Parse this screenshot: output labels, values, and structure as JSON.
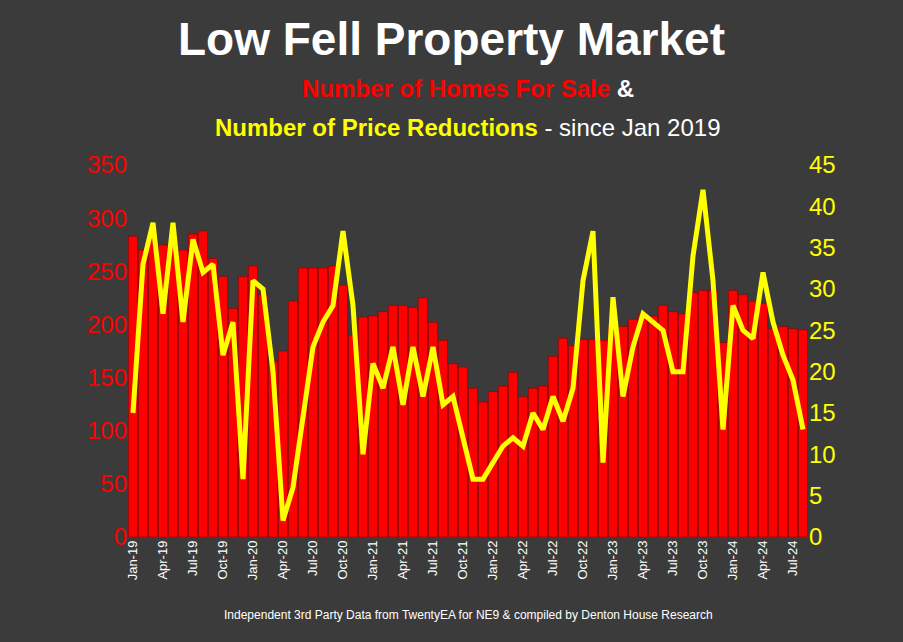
{
  "chart_data": {
    "type": "bar",
    "title": "Low Fell Property Market",
    "subtitle": {
      "joiner": "&",
      "suffix": "- since Jan 2019"
    },
    "annotation": "Independent 3rd Party Data from TwentyEA for NE9 & compiled by Denton House Research",
    "categories": [
      "Jan-19",
      null,
      null,
      "Apr-19",
      null,
      null,
      "Jul-19",
      null,
      null,
      "Oct-19",
      null,
      null,
      "Jan-20",
      null,
      null,
      "Apr-20",
      null,
      null,
      "Jul-20",
      null,
      null,
      "Oct-20",
      null,
      null,
      "Jan-21",
      null,
      null,
      "Apr-21",
      null,
      null,
      "Jul-21",
      null,
      null,
      "Oct-21",
      null,
      null,
      "Jan-22",
      null,
      null,
      "Apr-22",
      null,
      null,
      "Jul-22",
      null,
      null,
      "Oct-22",
      null,
      null,
      "Jan-23",
      null,
      null,
      "Apr-23",
      null,
      null,
      "Jul-23",
      null,
      null,
      "Oct-23",
      null,
      null,
      "Jan-24",
      null,
      null,
      "Apr-24",
      null,
      null,
      "Jul-24",
      null
    ],
    "series": [
      {
        "name": "Number of Homes For Sale",
        "type": "bar",
        "color": "#ff0000",
        "values": [
          283,
          270,
          285,
          275,
          275,
          270,
          285,
          288,
          262,
          245,
          215,
          245,
          255,
          228,
          165,
          175,
          222,
          253,
          253,
          253,
          255,
          237,
          190,
          207,
          208,
          212,
          218,
          218,
          216,
          225,
          202,
          185,
          163,
          160,
          140,
          127,
          137,
          142,
          155,
          132,
          140,
          142,
          170,
          187,
          180,
          186,
          186,
          185,
          198,
          198,
          205,
          210,
          208,
          218,
          212,
          210,
          230,
          232,
          232,
          183,
          232,
          228,
          222,
          220,
          196,
          198,
          196,
          195
        ]
      },
      {
        "name": "Number of Price Reductions",
        "type": "line",
        "color": "#ffff00",
        "axis": "y2",
        "values": [
          15,
          33,
          38,
          27,
          38,
          26,
          36,
          32,
          33,
          22,
          26,
          7,
          31,
          30,
          20,
          2,
          6,
          14,
          23,
          26,
          28,
          37,
          28,
          10,
          21,
          18,
          23,
          16,
          23,
          17,
          23,
          16,
          17,
          12,
          7,
          7,
          9,
          11,
          12,
          11,
          15,
          13,
          17,
          14,
          18,
          31,
          37,
          9,
          29,
          17,
          23,
          27,
          26,
          25,
          20,
          20,
          34,
          42,
          31,
          13,
          28,
          25,
          24,
          32,
          26,
          22,
          19,
          13
        ]
      }
    ],
    "ylim": [
      0,
      350
    ],
    "yticks": [
      0,
      50,
      100,
      150,
      200,
      250,
      300,
      350
    ],
    "y2lim": [
      0,
      45
    ],
    "y2ticks": [
      0,
      5,
      10,
      15,
      20,
      25,
      30,
      35,
      40,
      45
    ],
    "grid": false
  }
}
